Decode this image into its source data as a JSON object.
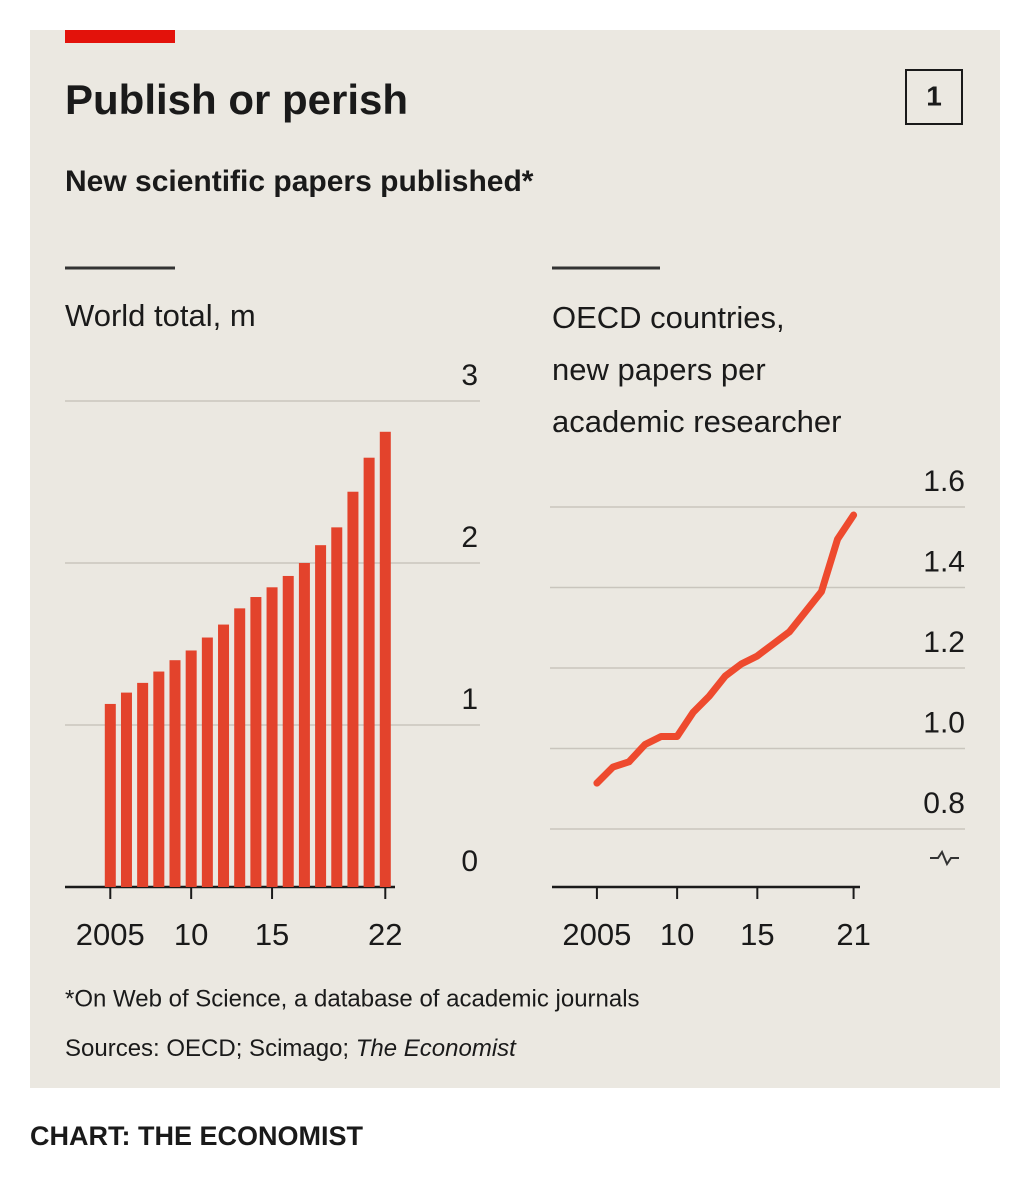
{
  "header": {
    "title": "Publish or perish",
    "subtitle": "New scientific papers published*",
    "badge": "1"
  },
  "chart_data": [
    {
      "type": "bar",
      "title": [
        "World total, m"
      ],
      "x": [
        2005,
        2006,
        2007,
        2008,
        2009,
        2010,
        2011,
        2012,
        2013,
        2014,
        2015,
        2016,
        2017,
        2018,
        2019,
        2020,
        2021,
        2022
      ],
      "values": [
        1.13,
        1.2,
        1.26,
        1.33,
        1.4,
        1.46,
        1.54,
        1.62,
        1.72,
        1.79,
        1.85,
        1.92,
        2.0,
        2.11,
        2.22,
        2.44,
        2.65,
        2.81
      ],
      "color": "#e3432c",
      "xlim": [
        2002.2,
        2022.6
      ],
      "xticks": [
        2005,
        {
          "value": 2010,
          "label": "10"
        },
        {
          "value": 2015,
          "label": "15"
        },
        {
          "value": 2022,
          "label": "22"
        }
      ],
      "ylim": [
        0,
        3
      ],
      "yticks": [
        0,
        1,
        2,
        3
      ],
      "grid": true
    },
    {
      "type": "line",
      "title": [
        "OECD countries,",
        "new papers per",
        "academic researcher"
      ],
      "x": [
        2005,
        2006,
        2007,
        2008,
        2009,
        2010,
        2011,
        2012,
        2013,
        2014,
        2015,
        2016,
        2017,
        2018,
        2019,
        2020,
        2021
      ],
      "values": [
        0.914,
        0.954,
        0.967,
        1.01,
        1.03,
        1.03,
        1.09,
        1.13,
        1.18,
        1.21,
        1.23,
        1.26,
        1.29,
        1.34,
        1.39,
        1.52,
        1.58
      ],
      "color": "#ee4a2e",
      "xlim": [
        2002.2,
        2021.4
      ],
      "xticks": [
        2005,
        {
          "value": 2010,
          "label": "10"
        },
        {
          "value": 2015,
          "label": "15"
        },
        {
          "value": 2021,
          "label": "21"
        }
      ],
      "ylim": [
        0.656,
        1.6
      ],
      "yticks": [
        0.8,
        {
          "value": 1.0,
          "label": "1.0"
        },
        1.2,
        1.4,
        1.6
      ],
      "grid": true
    }
  ],
  "footer": {
    "note": "*On Web of Science, a database of academic journals",
    "sources": [
      "Sources: OECD; Scimago; ",
      "The Economist"
    ],
    "credit": "CHART: THE ECONOMIST"
  }
}
